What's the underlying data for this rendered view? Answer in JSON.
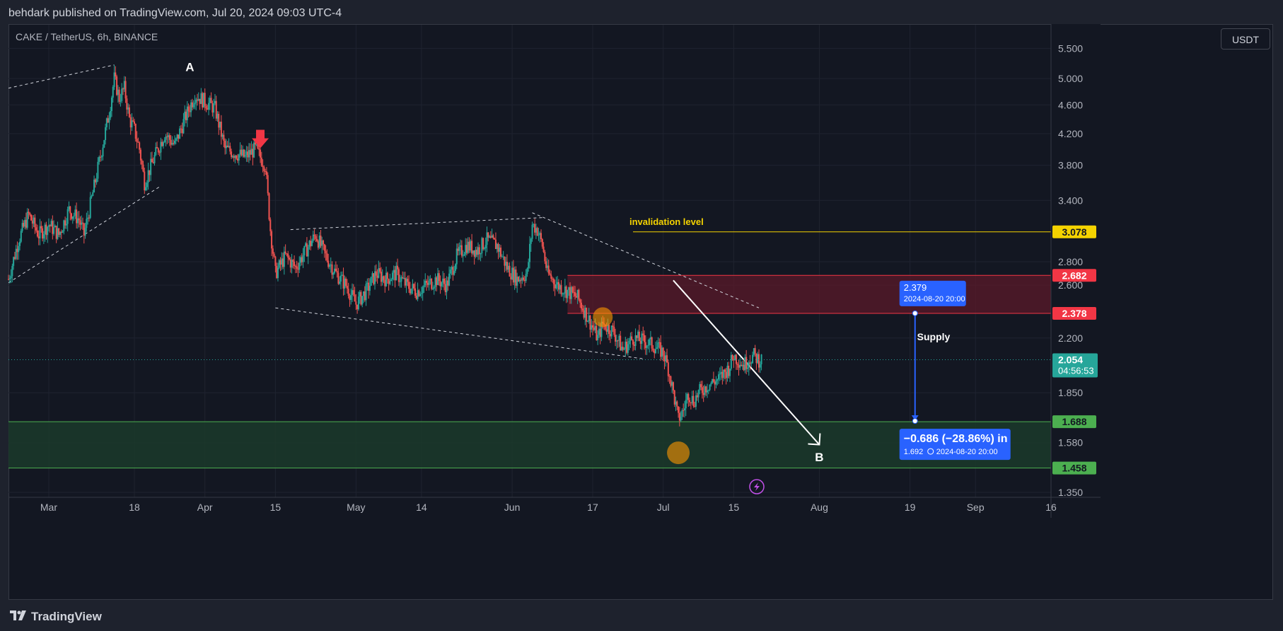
{
  "header": {
    "published": "behdark published on TradingView.com, Jul 20, 2024 09:03 UTC-4"
  },
  "symbol": {
    "label": "CAKE / TetherUS, 6h, BINANCE",
    "currency": "USDT"
  },
  "footer": {
    "brand": "TradingView"
  },
  "colors": {
    "background": "#131722",
    "grid": "#1f2330",
    "up": "#26a69a",
    "down": "#ef5350",
    "supply_fill": "#5b1a2a",
    "demand_fill": "#1b3a2a",
    "demand_line": "#4caf50",
    "supply_line": "#f23645",
    "invalidation": "#f5d300",
    "measure": "#2962ff"
  },
  "chart_data": {
    "type": "candlestick",
    "symbol": "CAKE / TetherUS",
    "interval": "6h",
    "exchange": "BINANCE",
    "y_axis": {
      "ticks": [
        5.5,
        5.0,
        4.6,
        4.2,
        3.8,
        3.4,
        2.8,
        2.6,
        2.2,
        1.85,
        1.58,
        1.35
      ],
      "tick_labels": [
        "5.500",
        "5.000",
        "4.600",
        "4.200",
        "3.800",
        "3.400",
        "2.800",
        "2.600",
        "2.200",
        "1.850",
        "1.580",
        "1.350"
      ],
      "scale": "log",
      "range": [
        1.32,
        5.7
      ]
    },
    "x_axis": {
      "ticks": [
        {
          "date": "2024-03-01",
          "label": "Mar"
        },
        {
          "date": "2024-03-18",
          "label": "18"
        },
        {
          "date": "2024-04-01",
          "label": "Apr"
        },
        {
          "date": "2024-04-15",
          "label": "15"
        },
        {
          "date": "2024-05-01",
          "label": "May"
        },
        {
          "date": "2024-05-14",
          "label": "14"
        },
        {
          "date": "2024-06-01",
          "label": "Jun"
        },
        {
          "date": "2024-06-17",
          "label": "17"
        },
        {
          "date": "2024-07-01",
          "label": "Jul"
        },
        {
          "date": "2024-07-15",
          "label": "15"
        },
        {
          "date": "2024-08-01",
          "label": "Aug"
        },
        {
          "date": "2024-08-19",
          "label": "19"
        },
        {
          "date": "2024-09-01",
          "label": "Sep"
        },
        {
          "date": "2024-09-16",
          "label": "16"
        }
      ],
      "range": [
        "2024-02-22",
        "2024-09-16"
      ]
    },
    "price_path": [
      [
        "2024-02-22",
        2.65
      ],
      [
        "2024-02-24",
        3.0
      ],
      [
        "2024-02-26",
        3.25
      ],
      [
        "2024-02-28",
        3.05
      ],
      [
        "2024-03-01",
        3.15
      ],
      [
        "2024-03-03",
        3.05
      ],
      [
        "2024-03-05",
        3.3
      ],
      [
        "2024-03-07",
        3.2
      ],
      [
        "2024-03-08",
        3.05
      ],
      [
        "2024-03-10",
        3.55
      ],
      [
        "2024-03-12",
        4.15
      ],
      [
        "2024-03-13",
        4.5
      ],
      [
        "2024-03-14",
        5.0
      ],
      [
        "2024-03-15",
        4.7
      ],
      [
        "2024-03-16",
        4.85
      ],
      [
        "2024-03-17",
        4.4
      ],
      [
        "2024-03-18",
        4.25
      ],
      [
        "2024-03-19",
        4.0
      ],
      [
        "2024-03-20",
        3.6
      ],
      [
        "2024-03-22",
        3.9
      ],
      [
        "2024-03-24",
        4.2
      ],
      [
        "2024-03-26",
        4.05
      ],
      [
        "2024-03-28",
        4.4
      ],
      [
        "2024-03-30",
        4.75
      ],
      [
        "2024-04-01",
        4.65
      ],
      [
        "2024-04-03",
        4.55
      ],
      [
        "2024-04-05",
        4.0
      ],
      [
        "2024-04-07",
        3.95
      ],
      [
        "2024-04-09",
        3.9
      ],
      [
        "2024-04-11",
        4.0
      ],
      [
        "2024-04-13",
        3.8
      ],
      [
        "2024-04-14",
        3.1
      ],
      [
        "2024-04-15",
        2.7
      ],
      [
        "2024-04-17",
        2.85
      ],
      [
        "2024-04-19",
        2.75
      ],
      [
        "2024-04-21",
        2.9
      ],
      [
        "2024-04-23",
        3.05
      ],
      [
        "2024-04-25",
        2.85
      ],
      [
        "2024-04-27",
        2.7
      ],
      [
        "2024-04-29",
        2.6
      ],
      [
        "2024-05-01",
        2.45
      ],
      [
        "2024-05-03",
        2.55
      ],
      [
        "2024-05-05",
        2.7
      ],
      [
        "2024-05-07",
        2.65
      ],
      [
        "2024-05-09",
        2.7
      ],
      [
        "2024-05-11",
        2.6
      ],
      [
        "2024-05-13",
        2.55
      ],
      [
        "2024-05-15",
        2.6
      ],
      [
        "2024-05-17",
        2.65
      ],
      [
        "2024-05-19",
        2.6
      ],
      [
        "2024-05-21",
        2.85
      ],
      [
        "2024-05-23",
        2.95
      ],
      [
        "2024-05-25",
        2.9
      ],
      [
        "2024-05-27",
        3.0
      ],
      [
        "2024-05-29",
        2.95
      ],
      [
        "2024-05-31",
        2.75
      ],
      [
        "2024-06-02",
        2.65
      ],
      [
        "2024-06-04",
        2.7
      ],
      [
        "2024-06-05",
        3.15
      ],
      [
        "2024-06-06",
        3.1
      ],
      [
        "2024-06-07",
        2.95
      ],
      [
        "2024-06-08",
        2.7
      ],
      [
        "2024-06-10",
        2.6
      ],
      [
        "2024-06-12",
        2.55
      ],
      [
        "2024-06-14",
        2.5
      ],
      [
        "2024-06-16",
        2.35
      ],
      [
        "2024-06-18",
        2.2
      ],
      [
        "2024-06-19",
        2.3
      ],
      [
        "2024-06-21",
        2.25
      ],
      [
        "2024-06-23",
        2.12
      ],
      [
        "2024-06-25",
        2.2
      ],
      [
        "2024-06-27",
        2.18
      ],
      [
        "2024-06-29",
        2.15
      ],
      [
        "2024-07-01",
        2.1
      ],
      [
        "2024-07-02",
        2.0
      ],
      [
        "2024-07-03",
        1.85
      ],
      [
        "2024-07-04",
        1.7
      ],
      [
        "2024-07-05",
        1.75
      ],
      [
        "2024-07-06",
        1.85
      ],
      [
        "2024-07-07",
        1.8
      ],
      [
        "2024-07-08",
        1.85
      ],
      [
        "2024-07-10",
        1.9
      ],
      [
        "2024-07-12",
        1.93
      ],
      [
        "2024-07-14",
        2.0
      ],
      [
        "2024-07-15",
        2.08
      ],
      [
        "2024-07-16",
        2.05
      ],
      [
        "2024-07-17",
        2.02
      ],
      [
        "2024-07-18",
        2.06
      ],
      [
        "2024-07-19",
        2.08
      ],
      [
        "2024-07-20",
        2.054
      ]
    ],
    "price_levels": [
      {
        "label": "3.078",
        "value": 3.078,
        "color": "#f5d300",
        "text_color": "#131722"
      },
      {
        "label": "2.682",
        "value": 2.682,
        "color": "#f23645",
        "text_color": "#ffffff"
      },
      {
        "label": "2.378",
        "value": 2.378,
        "color": "#f23645",
        "text_color": "#ffffff"
      },
      {
        "label": "1.688",
        "value": 1.688,
        "color": "#4caf50",
        "text_color": "#131722"
      },
      {
        "label": "1.458",
        "value": 1.458,
        "color": "#4caf50",
        "text_color": "#131722"
      }
    ],
    "last_price": {
      "label": "2.054",
      "value": 2.054,
      "countdown": "04:56:53",
      "color": "#26a69a"
    },
    "zones": [
      {
        "label": "Supply",
        "from": 2.378,
        "to": 2.682,
        "start": "2024-06-12",
        "end": "2024-09-16"
      },
      {
        "label": "",
        "from": 1.458,
        "to": 1.688,
        "start": "2024-02-22",
        "end": "2024-09-16"
      }
    ],
    "invalidation": {
      "label": "invalidation level",
      "value": 3.078,
      "start": "2024-06-25"
    },
    "wave_labels": [
      {
        "label": "A",
        "date": "2024-03-29",
        "value": 5.12
      },
      {
        "label": "B",
        "date": "2024-08-01",
        "value": 1.49
      }
    ],
    "measure": {
      "from_value": 2.379,
      "from_date_label": "2024-08-20 20:00",
      "to_value": 1.692,
      "to_date_label": "2024-08-20  20:00",
      "date": "2024-08-20",
      "change_label": "−0.686 (−28.86%) in",
      "from_label": "2.379",
      "to_label": "1.692"
    }
  }
}
